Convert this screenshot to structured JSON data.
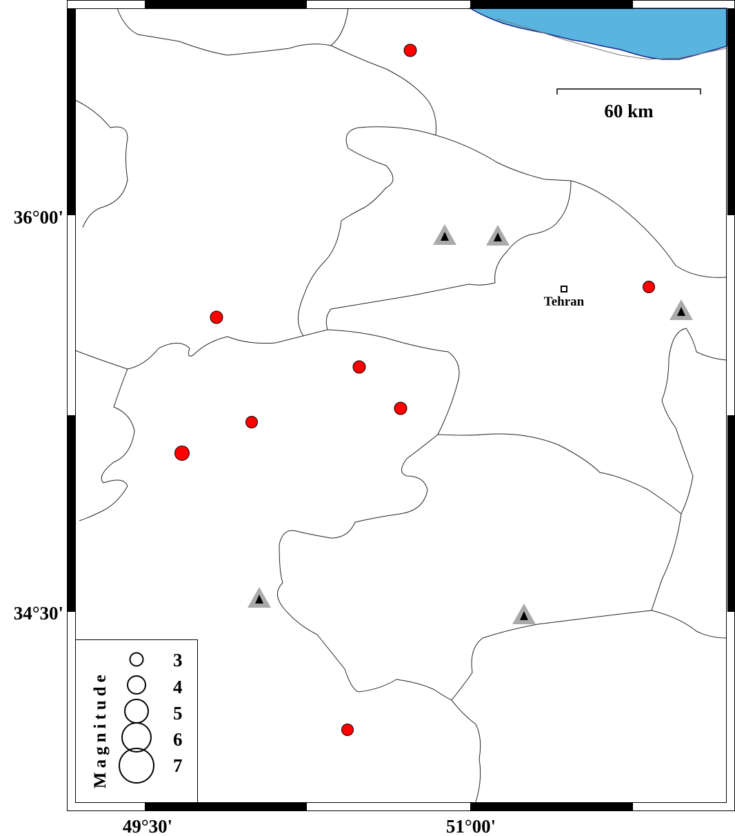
{
  "map": {
    "lon_ticks": [
      "49°30'",
      "51°00'"
    ],
    "lat_ticks": [
      "36°00'",
      "34°30'"
    ],
    "scale_bar": {
      "label": "60 km"
    },
    "city": {
      "name": "Tehran",
      "icon": "square-marker"
    },
    "colors": {
      "sea": "#5ab4e0",
      "earthquake": "#ff0000",
      "station_outer": "#aaaaaa",
      "station_inner": "#000000"
    },
    "legend": {
      "title": "Magnitude",
      "items": [
        {
          "label": "3",
          "magnitude": 3
        },
        {
          "label": "4",
          "magnitude": 4
        },
        {
          "label": "5",
          "magnitude": 5
        },
        {
          "label": "6",
          "magnitude": 6
        },
        {
          "label": "7",
          "magnitude": 7
        }
      ]
    }
  }
}
